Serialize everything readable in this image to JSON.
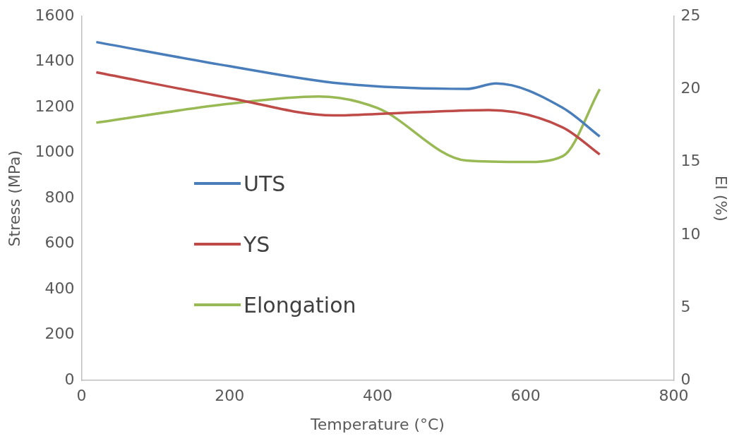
{
  "chart_data": {
    "type": "line",
    "xlabel": "Temperature (°C)",
    "ylabel": "Stress (MPa)",
    "y2label": "El (%)",
    "xlim": [
      0,
      800
    ],
    "xticks": [
      0,
      200,
      400,
      600,
      800
    ],
    "ylim": [
      0,
      1600
    ],
    "yticks": [
      0,
      200,
      400,
      600,
      800,
      1000,
      1200,
      1400,
      1600
    ],
    "y2lim": [
      0,
      25
    ],
    "y2ticks": [
      0,
      5,
      10,
      15,
      20,
      25
    ],
    "grid": false,
    "legend": "left",
    "marker": "none",
    "line_style": "solid",
    "series": [
      {
        "name": "UTS",
        "color": "#4a7ebb",
        "x": [
          20,
          200,
          350,
          520,
          560,
          650,
          700
        ],
        "values": [
          1487,
          1381,
          1305,
          1281,
          1305,
          1198,
          1072
        ]
      },
      {
        "name": "YS",
        "color": "#be4b48",
        "x": [
          20,
          200,
          340,
          450,
          550,
          650,
          700
        ],
        "values": [
          1354,
          1241,
          1165,
          1178,
          1188,
          1112,
          993
        ]
      },
      {
        "name": "Elongation",
        "color": "#98b954",
        "axis": "y2",
        "x": [
          20,
          200,
          320,
          400,
          520,
          600,
          650,
          700
        ],
        "values": [
          17.7,
          19.0,
          19.5,
          18.7,
          15.1,
          15.0,
          15.4,
          20.0
        ]
      }
    ]
  }
}
